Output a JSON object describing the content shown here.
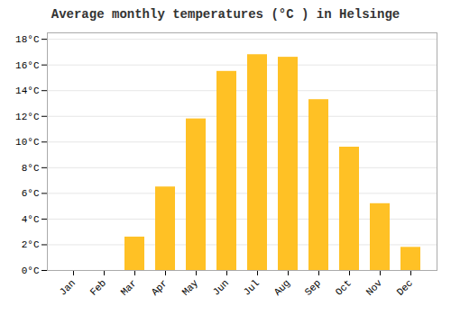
{
  "chart_data": {
    "type": "bar",
    "title": "Average monthly temperatures (°C ) in Helsinge",
    "categories": [
      "Jan",
      "Feb",
      "Mar",
      "Apr",
      "May",
      "Jun",
      "Jul",
      "Aug",
      "Sep",
      "Oct",
      "Nov",
      "Dec"
    ],
    "values": [
      0,
      0,
      2.6,
      6.5,
      11.8,
      15.5,
      16.8,
      16.6,
      13.3,
      9.6,
      5.2,
      1.8
    ],
    "color": "#FFC125",
    "ylim": [
      0,
      18.5
    ],
    "yticks": [
      {
        "value": 0,
        "label": "0°C"
      },
      {
        "value": 2,
        "label": "2°C"
      },
      {
        "value": 4,
        "label": "4°C"
      },
      {
        "value": 6,
        "label": "6°C"
      },
      {
        "value": 8,
        "label": "8°C"
      },
      {
        "value": 10,
        "label": "10°C"
      },
      {
        "value": 12,
        "label": "12°C"
      },
      {
        "value": 14,
        "label": "14°C"
      },
      {
        "value": 16,
        "label": "16°C"
      },
      {
        "value": 18,
        "label": "18°C"
      }
    ],
    "grid": true
  }
}
